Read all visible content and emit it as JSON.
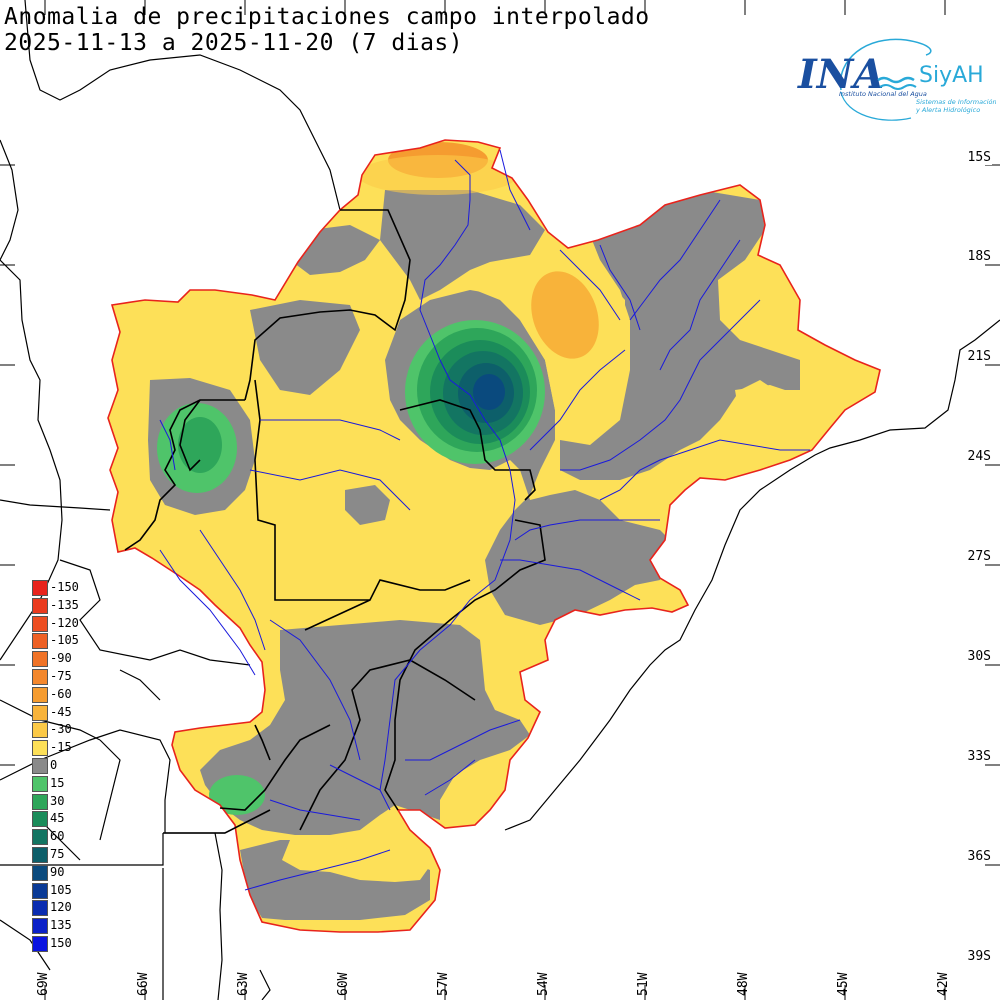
{
  "title": {
    "line1": "Anomalia de precipitaciones campo interpolado",
    "line2": "2025-11-13 a 2025-11-20 (7 dias)"
  },
  "logo": {
    "main": "INA",
    "siyah": "SiyAH",
    "subtitle": "Instituto Nacional del Agua",
    "siyah_sub1": "Sistemas de Información",
    "siyah_sub2": "y Alerta Hidrológico"
  },
  "lat_labels": [
    "15S",
    "18S",
    "21S",
    "24S",
    "27S",
    "30S",
    "33S",
    "36S",
    "39S"
  ],
  "lon_labels": [
    "69W",
    "66W",
    "63W",
    "60W",
    "57W",
    "54W",
    "51W",
    "48W",
    "45W",
    "42W"
  ],
  "legend": [
    {
      "value": "-150",
      "color": "#e8231c"
    },
    {
      "value": "-135",
      "color": "#ea3b1e"
    },
    {
      "value": "-120",
      "color": "#ec4e22"
    },
    {
      "value": "-105",
      "color": "#ee6024"
    },
    {
      "value": "-90",
      "color": "#f07327"
    },
    {
      "value": "-75",
      "color": "#f3872c"
    },
    {
      "value": "-60",
      "color": "#f59c30"
    },
    {
      "value": "-45",
      "color": "#f8b33a"
    },
    {
      "value": "-30",
      "color": "#fbc947"
    },
    {
      "value": "-15",
      "color": "#fde058"
    },
    {
      "value": "0",
      "color": "#8a8a8a"
    },
    {
      "value": "15",
      "color": "#4fc46a"
    },
    {
      "value": "30",
      "color": "#2ea65a"
    },
    {
      "value": "45",
      "color": "#1b8c5a"
    },
    {
      "value": "60",
      "color": "#137562"
    },
    {
      "value": "75",
      "color": "#0d5f6a"
    },
    {
      "value": "90",
      "color": "#0a4a7e"
    },
    {
      "value": "105",
      "color": "#0a3a96"
    },
    {
      "value": "120",
      "color": "#0a2cb0"
    },
    {
      "value": "135",
      "color": "#0a20c8"
    },
    {
      "value": "150",
      "color": "#0a14e0"
    }
  ],
  "colors": {
    "dry": "#fde058",
    "dry_strong": "#f8b33a",
    "dry_extreme": "#f59c30",
    "neutral": "#8a8a8a",
    "wet1": "#4fc46a",
    "wet2": "#2ea65a",
    "wet3": "#137562",
    "wet4": "#0d5f6a",
    "wet5": "#0a4a7e",
    "basin_outline": "#e8231c",
    "rivers": "#1a1adc",
    "borders": "#000000",
    "logo_blue": "#1a4fa0",
    "logo_cyan": "#29a9d8"
  }
}
